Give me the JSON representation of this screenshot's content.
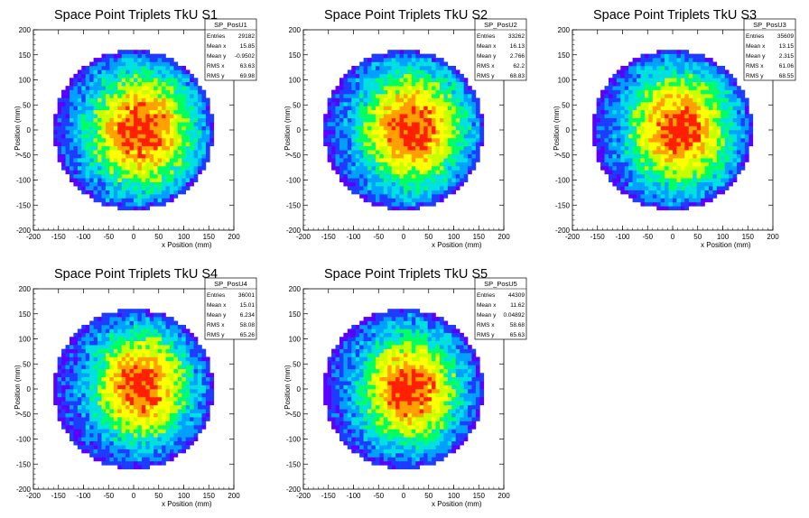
{
  "chart_data": [
    {
      "type": "heatmap",
      "title": "Space Point Triplets TkU S1",
      "xlabel": "x Position (mm)",
      "ylabel": "y Position (mm)",
      "xlim": [
        -200,
        200
      ],
      "ylim": [
        -200,
        200
      ],
      "x_ticks": [
        -200,
        -150,
        -100,
        -50,
        0,
        50,
        100,
        150,
        200
      ],
      "y_ticks": [
        -200,
        -150,
        -100,
        -50,
        0,
        50,
        100,
        150,
        200
      ],
      "stats": {
        "name": "SP_PosU1",
        "rows": [
          [
            "Entries",
            "29182"
          ],
          [
            "Mean x",
            "15.85"
          ],
          [
            "Mean y",
            "-0.9502"
          ],
          [
            "RMS x",
            "63.63"
          ],
          [
            "RMS y",
            "69.98"
          ]
        ]
      },
      "distribution": {
        "radius": 160,
        "center_x": 15.85,
        "center_y": -0.95,
        "rms_x": 63.63,
        "rms_y": 69.98
      }
    },
    {
      "type": "heatmap",
      "title": "Space Point Triplets TkU S2",
      "xlabel": "x Position (mm)",
      "ylabel": "y Position (mm)",
      "xlim": [
        -200,
        200
      ],
      "ylim": [
        -200,
        200
      ],
      "x_ticks": [
        -200,
        -150,
        -100,
        -50,
        0,
        50,
        100,
        150,
        200
      ],
      "y_ticks": [
        -200,
        -150,
        -100,
        -50,
        0,
        50,
        100,
        150,
        200
      ],
      "stats": {
        "name": "SP_PosU2",
        "rows": [
          [
            "Entries",
            "33262"
          ],
          [
            "Mean x",
            "16.13"
          ],
          [
            "Mean y",
            "2.766"
          ],
          [
            "RMS x",
            "62.2"
          ],
          [
            "RMS y",
            "68.83"
          ]
        ]
      },
      "distribution": {
        "radius": 160,
        "center_x": 16.13,
        "center_y": 2.77,
        "rms_x": 62.2,
        "rms_y": 68.83
      }
    },
    {
      "type": "heatmap",
      "title": "Space Point Triplets TkU S3",
      "xlabel": "x Position (mm)",
      "ylabel": "y Position (mm)",
      "xlim": [
        -200,
        200
      ],
      "ylim": [
        -200,
        200
      ],
      "x_ticks": [
        -200,
        -150,
        -100,
        -50,
        0,
        50,
        100,
        150,
        200
      ],
      "y_ticks": [
        -200,
        -150,
        -100,
        -50,
        0,
        50,
        100,
        150,
        200
      ],
      "stats": {
        "name": "SP_PosU3",
        "rows": [
          [
            "Entries",
            "35609"
          ],
          [
            "Mean x",
            "13.15"
          ],
          [
            "Mean y",
            "2.315"
          ],
          [
            "RMS x",
            "61.06"
          ],
          [
            "RMS y",
            "68.55"
          ]
        ]
      },
      "distribution": {
        "radius": 160,
        "center_x": 13.15,
        "center_y": 2.32,
        "rms_x": 61.06,
        "rms_y": 68.55
      }
    },
    {
      "type": "heatmap",
      "title": "Space Point Triplets TkU S4",
      "xlabel": "x Position (mm)",
      "ylabel": "y Position (mm)",
      "xlim": [
        -200,
        200
      ],
      "ylim": [
        -200,
        200
      ],
      "x_ticks": [
        -200,
        -150,
        -100,
        -50,
        0,
        50,
        100,
        150,
        200
      ],
      "y_ticks": [
        -200,
        -150,
        -100,
        -50,
        0,
        50,
        100,
        150,
        200
      ],
      "stats": {
        "name": "SP_PosU4",
        "rows": [
          [
            "Entries",
            "36001"
          ],
          [
            "Mean x",
            "15.01"
          ],
          [
            "Mean y",
            "6.234"
          ],
          [
            "RMS x",
            "58.08"
          ],
          [
            "RMS y",
            "65.26"
          ]
        ]
      },
      "distribution": {
        "radius": 160,
        "center_x": 15.01,
        "center_y": 6.23,
        "rms_x": 58.08,
        "rms_y": 65.26
      }
    },
    {
      "type": "heatmap",
      "title": "Space Point Triplets TkU S5",
      "xlabel": "x Position (mm)",
      "ylabel": "y Position (mm)",
      "xlim": [
        -200,
        200
      ],
      "ylim": [
        -200,
        200
      ],
      "x_ticks": [
        -200,
        -150,
        -100,
        -50,
        0,
        50,
        100,
        150,
        200
      ],
      "y_ticks": [
        -200,
        -150,
        -100,
        -50,
        0,
        50,
        100,
        150,
        200
      ],
      "stats": {
        "name": "SP_PosU5",
        "rows": [
          [
            "Entries",
            "44309"
          ],
          [
            "Mean x",
            "11.62"
          ],
          [
            "Mean y",
            "0.04892"
          ],
          [
            "RMS x",
            "58.68"
          ],
          [
            "RMS y",
            "65.63"
          ]
        ]
      },
      "distribution": {
        "radius": 160,
        "center_x": 11.62,
        "center_y": 0.05,
        "rms_x": 58.68,
        "rms_y": 65.63
      }
    }
  ],
  "colors": {
    "palette": [
      "#5a00ff",
      "#1e3cff",
      "#00a0ff",
      "#00e0e0",
      "#00ff60",
      "#c8ff00",
      "#ffff00",
      "#ffa000",
      "#ff2000"
    ],
    "frame": "#000000",
    "background": "#ffffff"
  }
}
